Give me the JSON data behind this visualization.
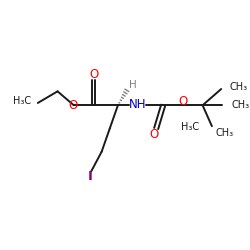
{
  "bg_color": "#ffffff",
  "bond_color": "#1a1a1a",
  "o_color": "#ff0000",
  "n_color": "#0000cc",
  "i_color": "#800080",
  "h_color": "#808080",
  "font_size": 7.0,
  "linewidth": 1.4,
  "fig_width": 2.5,
  "fig_height": 2.5,
  "dpi": 100,
  "xlim": [
    0,
    10
  ],
  "ylim": [
    0,
    10
  ],
  "alpha_x": 5.05,
  "alpha_y": 5.85,
  "ester_C_x": 4.0,
  "ester_C_y": 5.85,
  "boc_O_up_x": 4.0,
  "boc_O_up_y": 6.95,
  "ester_O_x": 3.15,
  "ester_O_y": 5.85,
  "eth_ch2_x": 2.45,
  "eth_ch2_y": 6.45,
  "eth_ch3_x": 1.6,
  "eth_ch3_y": 5.95,
  "nh_x": 5.95,
  "nh_y": 5.85,
  "boc_C_x": 7.0,
  "boc_C_y": 5.85,
  "boc_dO_x": 6.7,
  "boc_dO_y": 4.85,
  "boc_O_x": 7.85,
  "boc_O_y": 5.85,
  "tert_C_x": 8.7,
  "tert_C_y": 5.85,
  "ch3_1_x": 9.5,
  "ch3_1_y": 6.55,
  "ch3_2_x": 9.55,
  "ch3_2_y": 5.85,
  "ch3_3_x": 9.1,
  "ch3_3_y": 4.95,
  "h_x": 5.5,
  "h_y": 6.6,
  "ch2a_x": 4.7,
  "ch2a_y": 4.85,
  "ch2b_x": 4.35,
  "ch2b_y": 3.85,
  "I_x": 3.9,
  "I_y": 3.0
}
